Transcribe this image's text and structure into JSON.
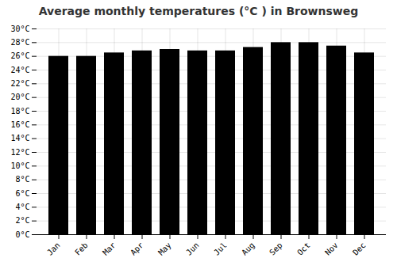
{
  "chart_data": {
    "type": "bar",
    "title": "Average monthly temperatures (°C ) in Brownsweg",
    "categories": [
      "Jan",
      "Feb",
      "Mar",
      "Apr",
      "May",
      "Jun",
      "Jul",
      "Aug",
      "Sep",
      "Oct",
      "Nov",
      "Dec"
    ],
    "values": [
      26.0,
      26.0,
      26.5,
      26.8,
      27.0,
      26.8,
      26.8,
      27.3,
      28.0,
      28.0,
      27.5,
      26.5
    ],
    "ylim": [
      0,
      30
    ],
    "yticks": [
      {
        "value": 0,
        "label": "0°C"
      },
      {
        "value": 2,
        "label": "2°C"
      },
      {
        "value": 4,
        "label": "4°C"
      },
      {
        "value": 6,
        "label": "6°C"
      },
      {
        "value": 8,
        "label": "8°C"
      },
      {
        "value": 10,
        "label": "10°C"
      },
      {
        "value": 12,
        "label": "12°C"
      },
      {
        "value": 14,
        "label": "14°C"
      },
      {
        "value": 16,
        "label": "16°C"
      },
      {
        "value": 18,
        "label": "18°C"
      },
      {
        "value": 20,
        "label": "20°C"
      },
      {
        "value": 22,
        "label": "22°C"
      },
      {
        "value": 24,
        "label": "24°C"
      },
      {
        "value": 26,
        "label": "26°C"
      },
      {
        "value": 28,
        "label": "28°C"
      },
      {
        "value": 30,
        "label": "30°C"
      }
    ],
    "grid": true
  }
}
